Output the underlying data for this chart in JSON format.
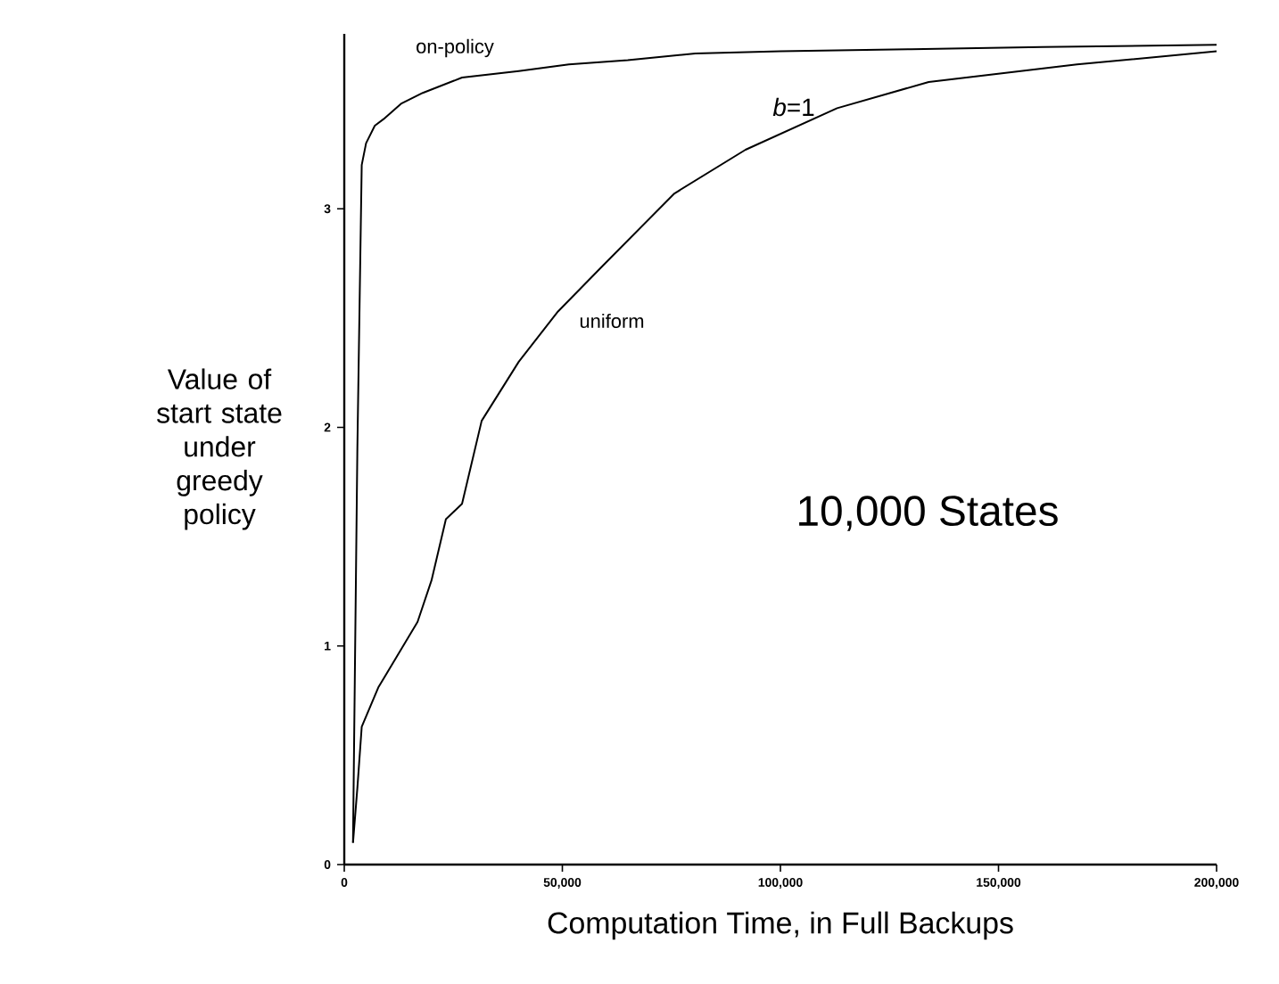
{
  "chart_data": {
    "type": "line",
    "xlabel": "Computation Time, in Full Backups",
    "ylabel": "Value of start state under greedy policy",
    "xlim": [
      0,
      200000
    ],
    "ylim": [
      0,
      3.8
    ],
    "xticks": [
      0,
      {
        "value": 50000,
        "label": "50,000"
      },
      {
        "value": 100000,
        "label": "100,000"
      },
      {
        "value": 150000,
        "label": "150,000"
      },
      {
        "value": 200000,
        "label": "200,000"
      }
    ],
    "yticks": [
      0,
      1,
      2,
      3
    ],
    "grid": false,
    "marker": "none",
    "line_style": "solid",
    "series": [
      {
        "color": "#000000",
        "x": [
          2000,
          3000,
          4000,
          5000,
          7000,
          9000,
          13000,
          18000,
          27000,
          40000,
          51500,
          65000,
          80500,
          100000,
          130000,
          160000,
          200000
        ],
        "values": [
          0.1,
          1.9,
          3.2,
          3.3,
          3.38,
          3.41,
          3.48,
          3.53,
          3.6,
          3.63,
          3.66,
          3.68,
          3.71,
          3.72,
          3.73,
          3.74,
          3.75
        ]
      },
      {
        "color": "#000000",
        "x": [
          2000,
          3000,
          4000,
          7800,
          12000,
          16800,
          20000,
          23300,
          27000,
          31500,
          40000,
          49000,
          59300,
          75700,
          92000,
          113000,
          134000,
          168000,
          200000
        ],
        "values": [
          0.1,
          0.35,
          0.63,
          0.81,
          0.95,
          1.11,
          1.3,
          1.58,
          1.65,
          2.03,
          2.3,
          2.53,
          2.74,
          3.07,
          3.27,
          3.46,
          3.58,
          3.66,
          3.72
        ]
      }
    ],
    "annotations": [
      "on-policy",
      "uniform",
      "*b*=1",
      "10,000 States"
    ]
  }
}
